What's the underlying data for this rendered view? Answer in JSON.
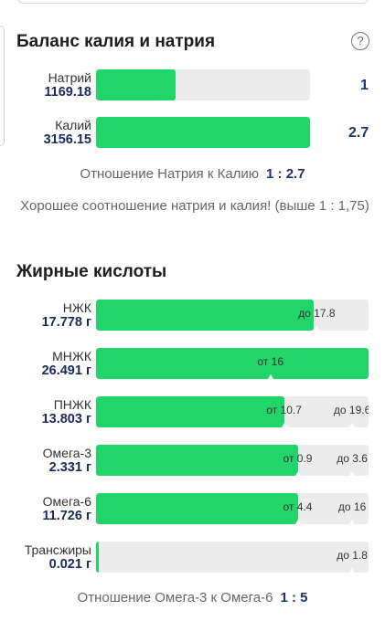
{
  "potassium_sodium": {
    "title": "Баланс калия и натрия",
    "help_icon": "question-circle-icon",
    "rows": [
      {
        "name": "Натрий",
        "value": "1169.18",
        "side": "1",
        "fill_fraction": 0.37
      },
      {
        "name": "Калий",
        "value": "3156.15",
        "side": "2.7",
        "fill_fraction": 1.0
      }
    ],
    "ratio_label": "Отношение Натрия к Калию",
    "ratio_value": "1 : 2.7",
    "note": "Хорошее соотношение натрия и калия! (выше 1 : 1,75)"
  },
  "fatty_acids": {
    "title": "Жирные кислоты",
    "rows": [
      {
        "name": "НЖК",
        "value": "17.778 г",
        "fill_fraction": 0.8,
        "min": "",
        "max": "до 17.8"
      },
      {
        "name": "МНЖК",
        "value": "26.491 г",
        "fill_fraction": 1.0,
        "min": "от 16",
        "max": ""
      },
      {
        "name": "ПНЖК",
        "value": "13.803 г",
        "fill_fraction": 0.69,
        "min": "от 10.7",
        "max": "до 19.6"
      },
      {
        "name": "Омега-3",
        "value": "2.331 г",
        "fill_fraction": 0.74,
        "min": "от 0.9",
        "max": "до 3.6"
      },
      {
        "name": "Омега-6",
        "value": "11.726 г",
        "fill_fraction": 0.74,
        "min": "от 4.4",
        "max": "до 16"
      },
      {
        "name": "Трансжиры",
        "value": "0.021 г",
        "fill_fraction": 0.01,
        "min": "",
        "max": "до 1.8"
      }
    ],
    "ratio_label": "Отношение Омега-3 к Омега-6",
    "ratio_value": "1 : 5"
  },
  "colors": {
    "fill": "#22d56b",
    "track": "#ececec",
    "value_text": "#1c3370"
  }
}
